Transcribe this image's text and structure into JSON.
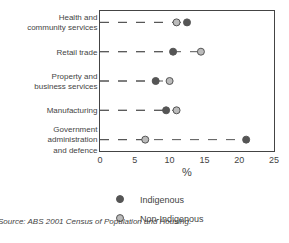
{
  "chart_data": {
    "type": "scatter",
    "categories": [
      "Health and\ncommunity services",
      "Retail trade",
      "Property and\nbusiness services",
      "Manufacturing",
      "Government\nadministration\nand defence"
    ],
    "series": [
      {
        "name": "Indigenous",
        "color": "#555555",
        "values": [
          12.5,
          10.5,
          8.0,
          9.5,
          21.0
        ]
      },
      {
        "name": "Non-Indigenous",
        "color": "#bbbbbb",
        "values": [
          11.0,
          14.5,
          10.0,
          11.0,
          6.5
        ]
      }
    ],
    "xlabel": "%",
    "xlim": [
      0,
      25
    ],
    "xticks": [
      0,
      5,
      10,
      15,
      20,
      25
    ],
    "line_start": 0,
    "line_style": "dashed",
    "marker": "circle",
    "grid": false,
    "legend": "bottom",
    "annotations": [
      "Source: ABS 2001 Census of Population and Housing."
    ]
  }
}
